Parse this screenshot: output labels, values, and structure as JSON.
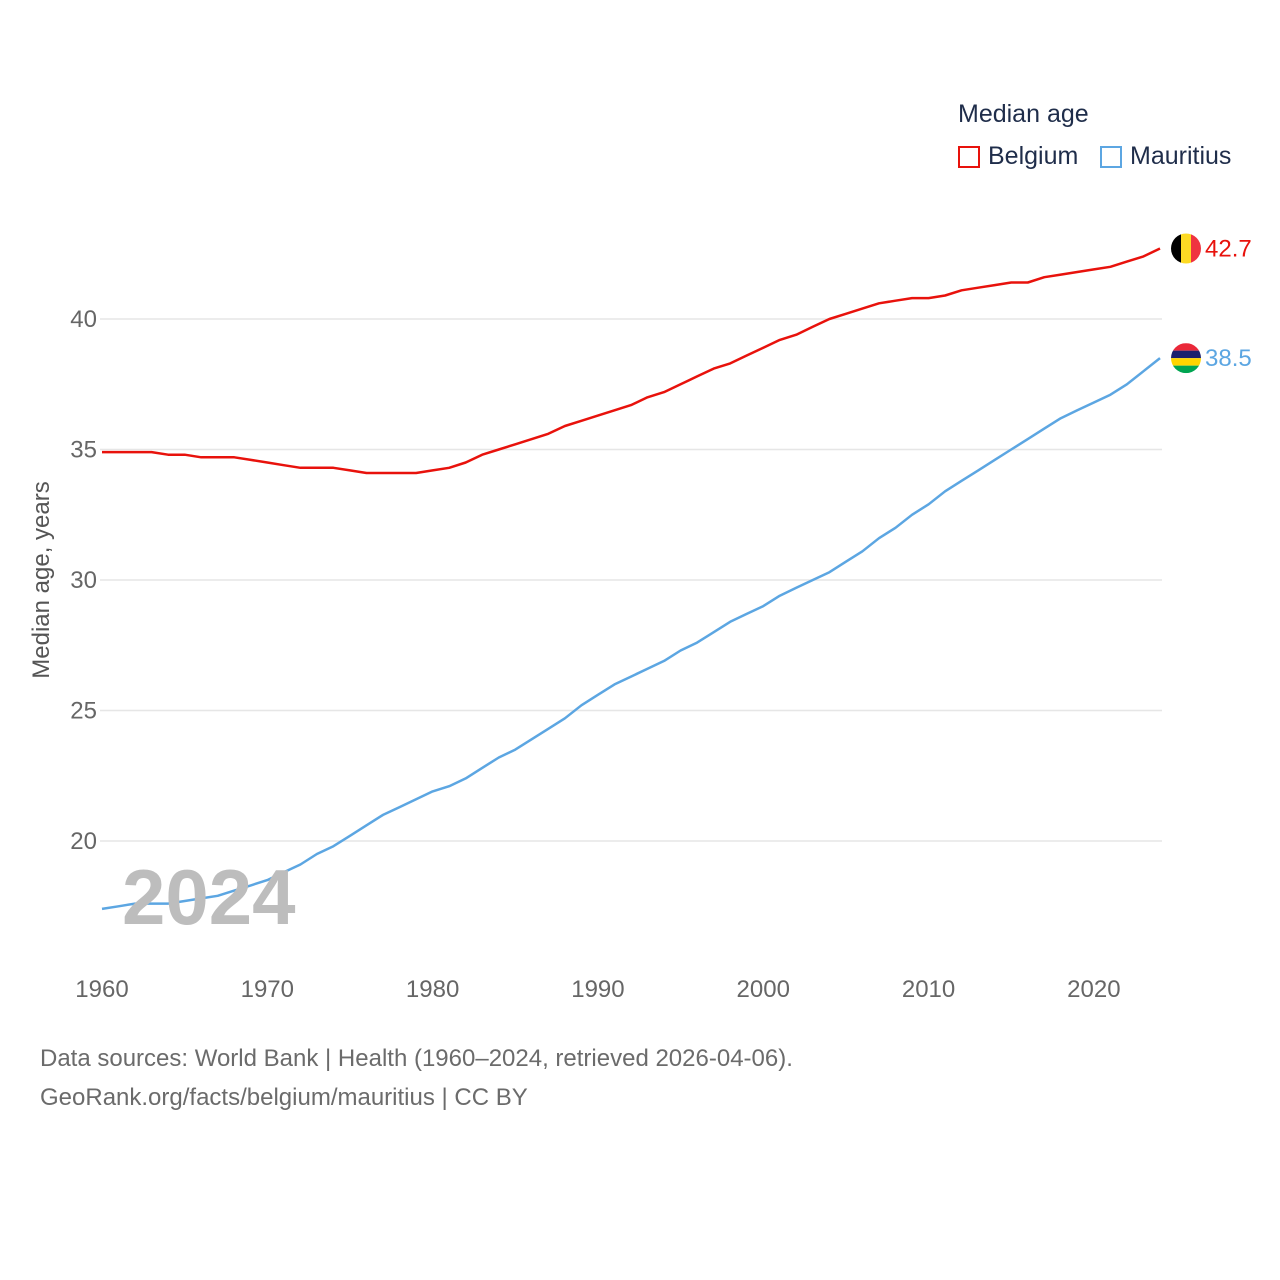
{
  "chart_data": {
    "type": "line",
    "title": "Median age",
    "ylabel": "Median age, years",
    "xlabel": "",
    "xlim": [
      1960,
      2024
    ],
    "ylim": [
      16.5,
      44
    ],
    "yticks": [
      20,
      25,
      30,
      35,
      40
    ],
    "xticks": [
      1960,
      1970,
      1980,
      1990,
      2000,
      2010,
      2020
    ],
    "grid": true,
    "legend_position": "top-right",
    "current_year_label": "2024",
    "x": [
      1960,
      1961,
      1962,
      1963,
      1964,
      1965,
      1966,
      1967,
      1968,
      1969,
      1970,
      1971,
      1972,
      1973,
      1974,
      1975,
      1976,
      1977,
      1978,
      1979,
      1980,
      1981,
      1982,
      1983,
      1984,
      1985,
      1986,
      1987,
      1988,
      1989,
      1990,
      1991,
      1992,
      1993,
      1994,
      1995,
      1996,
      1997,
      1998,
      1999,
      2000,
      2001,
      2002,
      2003,
      2004,
      2005,
      2006,
      2007,
      2008,
      2009,
      2010,
      2011,
      2012,
      2013,
      2014,
      2015,
      2016,
      2017,
      2018,
      2019,
      2020,
      2021,
      2022,
      2023,
      2024
    ],
    "series": [
      {
        "name": "Belgium",
        "color": "#e8120c",
        "end_label": "42.7",
        "flag": "belgium-flag",
        "values": [
          34.9,
          34.9,
          34.9,
          34.9,
          34.8,
          34.8,
          34.7,
          34.7,
          34.7,
          34.6,
          34.5,
          34.4,
          34.3,
          34.3,
          34.3,
          34.2,
          34.1,
          34.1,
          34.1,
          34.1,
          34.2,
          34.3,
          34.5,
          34.8,
          35.0,
          35.2,
          35.4,
          35.6,
          35.9,
          36.1,
          36.3,
          36.5,
          36.7,
          37.0,
          37.2,
          37.5,
          37.8,
          38.1,
          38.3,
          38.6,
          38.9,
          39.2,
          39.4,
          39.7,
          40.0,
          40.2,
          40.4,
          40.6,
          40.7,
          40.8,
          40.8,
          40.9,
          41.1,
          41.2,
          41.3,
          41.4,
          41.4,
          41.6,
          41.7,
          41.8,
          41.9,
          42.0,
          42.2,
          42.4,
          42.7
        ]
      },
      {
        "name": "Mauritius",
        "color": "#5ca6e2",
        "end_label": "38.5",
        "flag": "mauritius-flag",
        "values": [
          17.4,
          17.5,
          17.6,
          17.6,
          17.6,
          17.7,
          17.8,
          17.9,
          18.1,
          18.3,
          18.5,
          18.8,
          19.1,
          19.5,
          19.8,
          20.2,
          20.6,
          21.0,
          21.3,
          21.6,
          21.9,
          22.1,
          22.4,
          22.8,
          23.2,
          23.5,
          23.9,
          24.3,
          24.7,
          25.2,
          25.6,
          26.0,
          26.3,
          26.6,
          26.9,
          27.3,
          27.6,
          28.0,
          28.4,
          28.7,
          29.0,
          29.4,
          29.7,
          30.0,
          30.3,
          30.7,
          31.1,
          31.6,
          32.0,
          32.5,
          32.9,
          33.4,
          33.8,
          34.2,
          34.6,
          35.0,
          35.4,
          35.8,
          36.2,
          36.5,
          36.8,
          37.1,
          37.5,
          38.0,
          38.5
        ]
      }
    ]
  },
  "legend": {
    "title": "Median age",
    "items": [
      {
        "label": "Belgium",
        "color": "#e8120c"
      },
      {
        "label": "Mauritius",
        "color": "#5ca6e2"
      }
    ]
  },
  "footer": {
    "line1": "Data sources: World Bank | Health (1960–2024, retrieved 2026-04-06).",
    "line2": "GeoRank.org/facts/belgium/mauritius | CC BY"
  }
}
